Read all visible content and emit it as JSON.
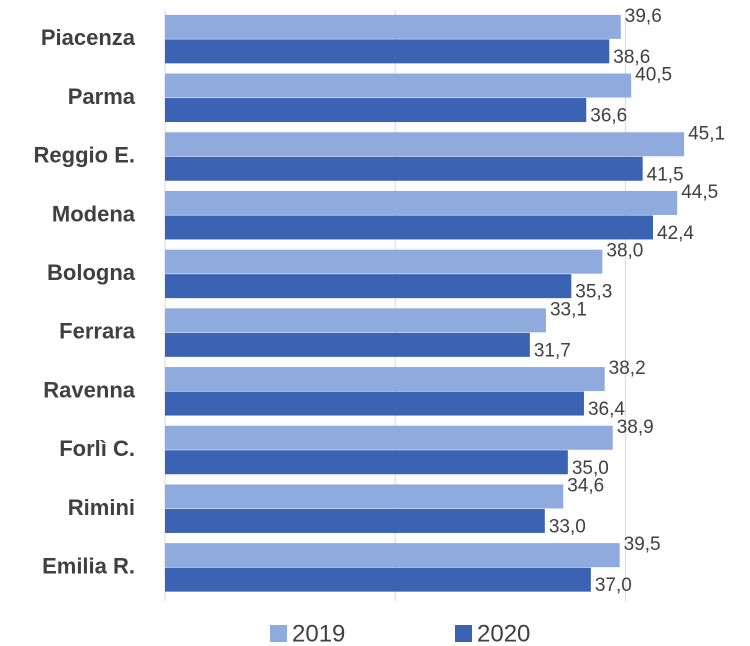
{
  "chart_data": {
    "type": "bar",
    "orientation": "horizontal",
    "categories": [
      "Piacenza",
      "Parma",
      "Reggio E.",
      "Modena",
      "Bologna",
      "Ferrara",
      "Ravenna",
      "Forlì C.",
      "Rimini",
      "Emilia R."
    ],
    "series": [
      {
        "name": "2019",
        "color": "#8faadc",
        "values": [
          39.6,
          40.5,
          45.1,
          44.5,
          38.0,
          33.1,
          38.2,
          38.9,
          34.6,
          39.5
        ],
        "value_labels": [
          "39,6",
          "40,5",
          "45,1",
          "44,5",
          "38,0",
          "33,1",
          "38,2",
          "38,9",
          "34,6",
          "39,5"
        ]
      },
      {
        "name": "2020",
        "color": "#3b63b3",
        "values": [
          38.6,
          36.6,
          41.5,
          42.4,
          35.3,
          31.7,
          36.4,
          35.0,
          33.0,
          37.0
        ],
        "value_labels": [
          "38,6",
          "36,6",
          "41,5",
          "42,4",
          "35,3",
          "31,7",
          "36,4",
          "35,0",
          "33,0",
          "37,0"
        ]
      }
    ],
    "xlim": [
      0,
      50
    ],
    "xticks": [
      0,
      20,
      40
    ],
    "grid": true,
    "legend": "bottom"
  }
}
